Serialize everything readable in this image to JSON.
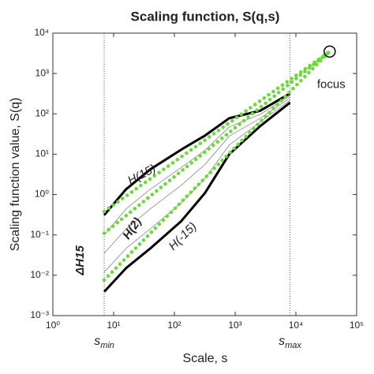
{
  "chart_data": {
    "type": "line",
    "title": "Scaling function, S(q,s)",
    "xlabel": "Scale, s",
    "ylabel": "Scaling function value, S(q)",
    "xscale": "log",
    "yscale": "log",
    "xlim": [
      1,
      100000
    ],
    "ylim": [
      0.001,
      10000
    ],
    "xticks": [
      {
        "value": 1,
        "label": "10⁰"
      },
      {
        "value": 10,
        "label": "10¹"
      },
      {
        "value": 100,
        "label": "10²"
      },
      {
        "value": 1000,
        "label": "10³"
      },
      {
        "value": 10000,
        "label": "10⁴"
      },
      {
        "value": 100000,
        "label": "10⁵"
      }
    ],
    "yticks": [
      {
        "value": 0.001,
        "label": "10⁻³"
      },
      {
        "value": 0.01,
        "label": "10⁻²"
      },
      {
        "value": 0.1,
        "label": "10⁻¹"
      },
      {
        "value": 1,
        "label": "10⁰"
      },
      {
        "value": 10,
        "label": "10¹"
      },
      {
        "value": 100,
        "label": "10²"
      },
      {
        "value": 1000,
        "label": "10³"
      },
      {
        "value": 10000,
        "label": "10⁴"
      }
    ],
    "vlines": [
      {
        "x": 7,
        "text": "s",
        "sub": "min"
      },
      {
        "x": 8000,
        "text": "s",
        "sub": "max"
      }
    ],
    "series": [
      {
        "color": "#888888",
        "width": 0.8,
        "style": "solid",
        "x": [
          7,
          16,
          40,
          130,
          320,
          800,
          2600,
          8000
        ],
        "values": [
          0.1,
          0.44,
          1.35,
          4.7,
          12.6,
          47,
          98,
          282
        ]
      },
      {
        "color": "#888888",
        "width": 0.8,
        "style": "solid",
        "x": [
          7,
          16,
          40,
          130,
          320,
          800,
          2600,
          8000
        ],
        "values": [
          0.035,
          0.14,
          0.44,
          1.7,
          5.6,
          28,
          78,
          250
        ]
      },
      {
        "color": "#888888",
        "width": 0.8,
        "style": "solid",
        "x": [
          7,
          16,
          40,
          130,
          320,
          800,
          2600,
          8000
        ],
        "values": [
          0.012,
          0.046,
          0.14,
          0.62,
          2.5,
          17,
          63,
          220
        ]
      },
      {
        "color": "#000000",
        "width": 3,
        "style": "solid",
        "x": [
          7,
          16,
          40,
          130,
          320,
          800,
          2600,
          8000
        ],
        "values": [
          0.31,
          1.35,
          4.2,
          13,
          29,
          78,
          120,
          320
        ]
      },
      {
        "color": "#000000",
        "width": 3,
        "style": "solid",
        "x": [
          7,
          16,
          40,
          130,
          320,
          800,
          2600,
          8000
        ],
        "values": [
          0.0039,
          0.015,
          0.046,
          0.22,
          1.1,
          10,
          50,
          190
        ]
      },
      {
        "color": "#66dd33",
        "width": 4.5,
        "style": "dotted",
        "x": [
          7,
          36000
        ],
        "values": [
          0.38,
          3500
        ]
      },
      {
        "color": "#66dd33",
        "width": 4.5,
        "style": "dotted",
        "x": [
          7,
          36000
        ],
        "values": [
          0.11,
          3500
        ]
      },
      {
        "color": "#66dd33",
        "width": 4.5,
        "style": "dotted",
        "x": [
          7,
          36000
        ],
        "values": [
          0.0076,
          3500
        ]
      }
    ],
    "focus": {
      "x": 36000,
      "y": 3500,
      "label": "focus"
    },
    "annotations": [
      "H(15)",
      "H(2)",
      "H(-15)",
      "ΔH15"
    ]
  }
}
